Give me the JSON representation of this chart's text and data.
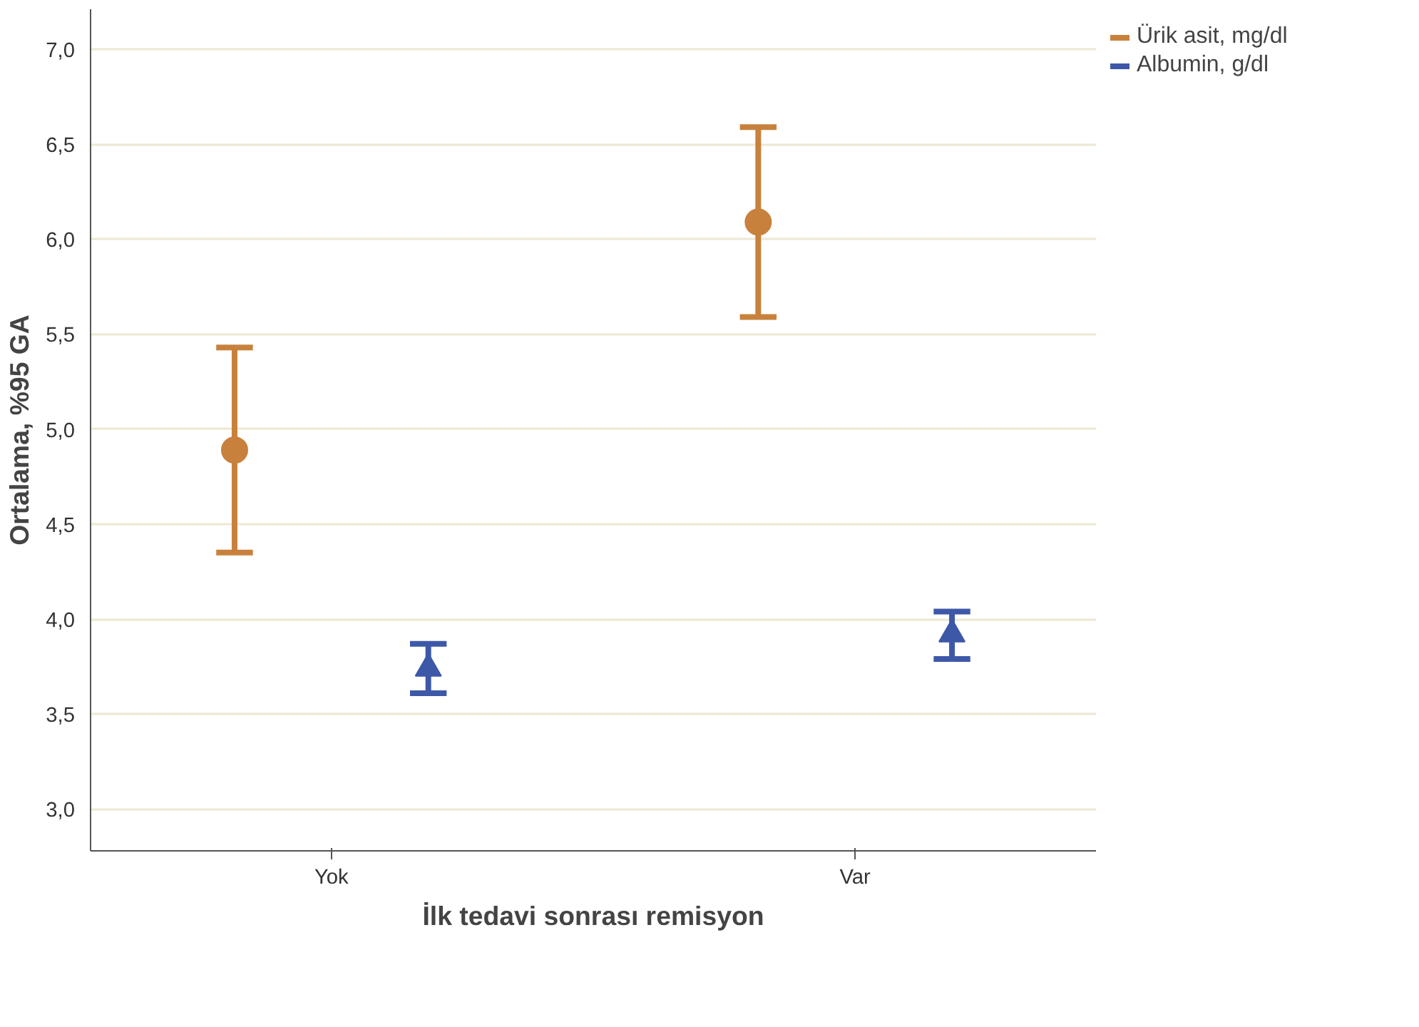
{
  "chart_data": {
    "type": "scatter",
    "xlabel": "İlk tedavi sonrası remisyon",
    "ylabel": "Ortalama, %95 GA",
    "categories": [
      "Yok",
      "Var"
    ],
    "series": [
      {
        "name": "Ürik asit, mg/dl",
        "color": "#c8813c",
        "marker": "circle",
        "values": [
          4.89,
          6.09
        ],
        "errors": [
          [
            4.35,
            5.43
          ],
          [
            5.59,
            6.59
          ]
        ]
      },
      {
        "name": "Albumin, g/dl",
        "color": "#3e58a8",
        "marker": "triangle",
        "values": [
          3.74,
          3.92
        ],
        "errors": [
          [
            3.61,
            3.87
          ],
          [
            3.79,
            4.04
          ]
        ]
      }
    ],
    "ylim": [
      2.78,
      7.21
    ],
    "yticks": [
      {
        "value": 3,
        "label": "3,0"
      },
      {
        "value": 3.5,
        "label": "3,5"
      },
      {
        "value": 4,
        "label": "4,0"
      },
      {
        "value": 4.5,
        "label": "4,5"
      },
      {
        "value": 5,
        "label": "5,0"
      },
      {
        "value": 5.5,
        "label": "5,5"
      },
      {
        "value": 6,
        "label": "6,0"
      },
      {
        "value": 6.5,
        "label": "6,5"
      },
      {
        "value": 7,
        "label": "7,0"
      }
    ],
    "grid": "y",
    "legend": "top right"
  }
}
